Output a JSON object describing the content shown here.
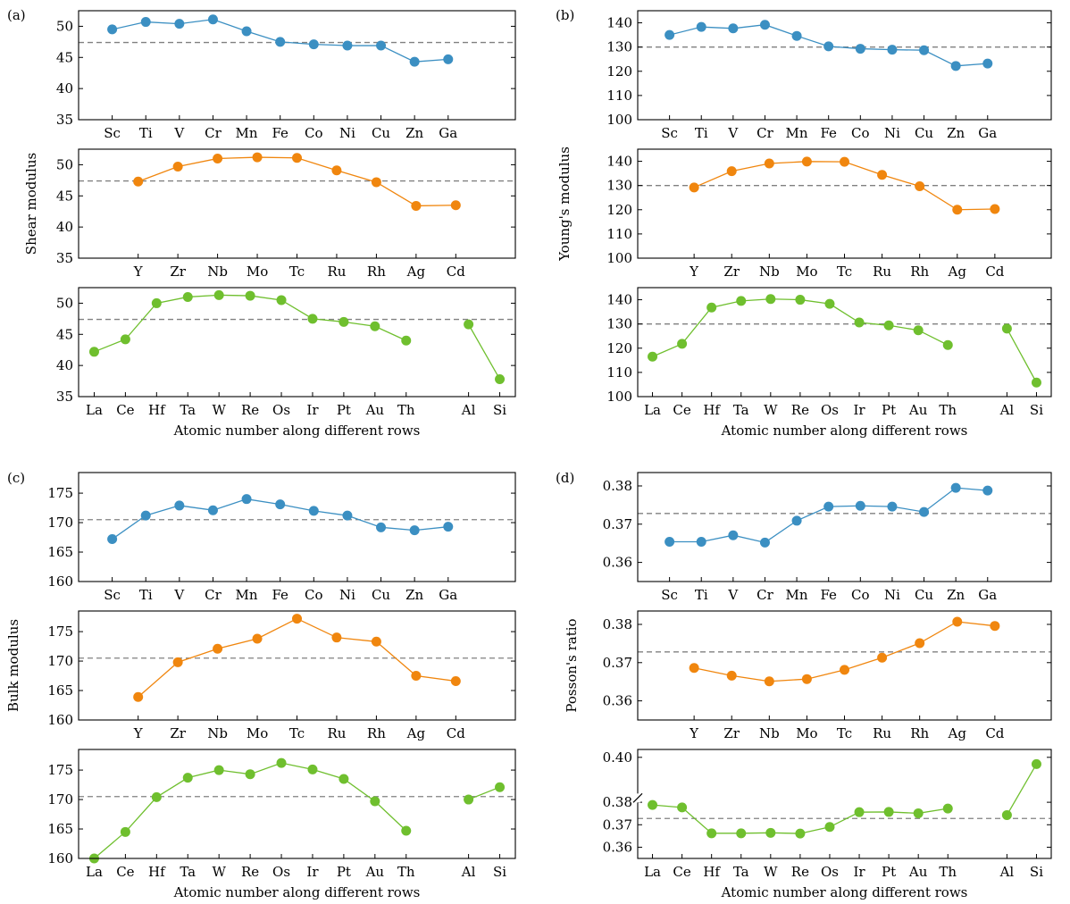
{
  "chart_data": [
    {
      "panel": "(a)",
      "type": "line",
      "ylabel": "Shear modulus",
      "xlabel": "Atomic number along different rows",
      "ylim": [
        35,
        52.5
      ],
      "yticks": [
        35,
        40,
        45,
        50
      ],
      "yticklabels": [
        "35",
        "40",
        "45",
        "50"
      ],
      "reference_line": 47.4,
      "rows": [
        {
          "color": "#3b8fc2",
          "categories": [
            "Sc",
            "Ti",
            "V",
            "Cr",
            "Mn",
            "Fe",
            "Co",
            "Ni",
            "Cu",
            "Zn",
            "Ga"
          ],
          "values": [
            49.5,
            50.7,
            50.4,
            51.1,
            49.2,
            47.5,
            47.1,
            46.9,
            46.9,
            44.3,
            44.7
          ]
        },
        {
          "color": "#f0860e",
          "categories": [
            "Y",
            "Zr",
            "Nb",
            "Mo",
            "Tc",
            "Ru",
            "Rh",
            "Ag",
            "Cd"
          ],
          "values": [
            47.3,
            49.7,
            51.0,
            51.2,
            51.1,
            49.1,
            47.2,
            43.4,
            43.5
          ]
        },
        {
          "color": "#6fbf2e",
          "categories": [
            "La",
            "Ce",
            "Hf",
            "Ta",
            "W",
            "Re",
            "Os",
            "Ir",
            "Pt",
            "Au",
            "Th",
            "",
            "Al",
            "Si"
          ],
          "values": [
            42.2,
            44.2,
            50.0,
            51.0,
            51.3,
            51.2,
            50.5,
            47.5,
            47.0,
            46.3,
            44.0,
            null,
            46.6,
            37.8
          ]
        }
      ]
    },
    {
      "panel": "(b)",
      "type": "line",
      "ylabel": "Young's modulus",
      "xlabel": "Atomic number along different rows",
      "ylim": [
        100,
        145
      ],
      "yticks": [
        100,
        110,
        120,
        130,
        140
      ],
      "yticklabels": [
        "100",
        "110",
        "120",
        "130",
        "140"
      ],
      "reference_line": 130,
      "rows": [
        {
          "color": "#3b8fc2",
          "categories": [
            "Sc",
            "Ti",
            "V",
            "Cr",
            "Mn",
            "Fe",
            "Co",
            "Ni",
            "Cu",
            "Zn",
            "Ga"
          ],
          "values": [
            135.0,
            138.3,
            137.7,
            139.2,
            134.6,
            130.3,
            129.3,
            128.9,
            128.7,
            122.2,
            123.2
          ]
        },
        {
          "color": "#f0860e",
          "categories": [
            "Y",
            "Zr",
            "Nb",
            "Mo",
            "Tc",
            "Ru",
            "Rh",
            "Ag",
            "Cd"
          ],
          "values": [
            129.2,
            135.9,
            139.1,
            139.9,
            139.8,
            134.4,
            129.7,
            120.0,
            120.3
          ]
        },
        {
          "color": "#6fbf2e",
          "categories": [
            "La",
            "Ce",
            "Hf",
            "Ta",
            "W",
            "Re",
            "Os",
            "Ir",
            "Pt",
            "Au",
            "Th",
            "",
            "Al",
            "Si"
          ],
          "values": [
            116.5,
            121.8,
            136.8,
            139.5,
            140.3,
            140.0,
            138.3,
            130.6,
            129.4,
            127.4,
            121.3,
            null,
            128.1,
            105.8
          ]
        }
      ]
    },
    {
      "panel": "(c)",
      "type": "line",
      "ylabel": "Bulk modulus",
      "xlabel": "Atomic number along different rows",
      "ylim": [
        160,
        178.5
      ],
      "yticks": [
        160,
        165,
        170,
        175
      ],
      "yticklabels": [
        "160",
        "165",
        "170",
        "175"
      ],
      "reference_line": 170.5,
      "rows": [
        {
          "color": "#3b8fc2",
          "categories": [
            "Sc",
            "Ti",
            "V",
            "Cr",
            "Mn",
            "Fe",
            "Co",
            "Ni",
            "Cu",
            "Zn",
            "Ga"
          ],
          "values": [
            167.2,
            171.2,
            172.9,
            172.1,
            174.0,
            173.1,
            172.0,
            171.2,
            169.2,
            168.7,
            169.3
          ]
        },
        {
          "color": "#f0860e",
          "categories": [
            "Y",
            "Zr",
            "Nb",
            "Mo",
            "Tc",
            "Ru",
            "Rh",
            "Ag",
            "Cd"
          ],
          "values": [
            163.9,
            169.8,
            172.1,
            173.8,
            177.2,
            174.0,
            173.3,
            167.5,
            166.6
          ]
        },
        {
          "color": "#6fbf2e",
          "categories": [
            "La",
            "Ce",
            "Hf",
            "Ta",
            "W",
            "Re",
            "Os",
            "Ir",
            "Pt",
            "Au",
            "Th",
            "",
            "Al",
            "Si"
          ],
          "values": [
            160.0,
            164.5,
            170.4,
            173.7,
            175.0,
            174.3,
            176.2,
            175.1,
            173.5,
            169.7,
            164.7,
            null,
            170.0,
            172.1
          ]
        }
      ]
    },
    {
      "panel": "(d)",
      "type": "line",
      "ylabel": "Posson's ratio",
      "xlabel": "Atomic number along different rows",
      "ylim": [
        0.355,
        0.3835
      ],
      "yticks": [
        0.36,
        0.37,
        0.38
      ],
      "yticklabels": [
        "0.36",
        "0.37",
        "0.38"
      ],
      "reference_line": 0.3728,
      "rows": [
        {
          "color": "#3b8fc2",
          "categories": [
            "Sc",
            "Ti",
            "V",
            "Cr",
            "Mn",
            "Fe",
            "Co",
            "Ni",
            "Cu",
            "Zn",
            "Ga"
          ],
          "values": [
            0.3654,
            0.3654,
            0.3671,
            0.3652,
            0.3709,
            0.3746,
            0.3748,
            0.3746,
            0.3732,
            0.3795,
            0.3788
          ]
        },
        {
          "color": "#f0860e",
          "categories": [
            "Y",
            "Zr",
            "Nb",
            "Mo",
            "Tc",
            "Ru",
            "Rh",
            "Ag",
            "Cd"
          ],
          "values": [
            0.3686,
            0.3666,
            0.3651,
            0.3657,
            0.3681,
            0.3713,
            0.3751,
            0.3807,
            0.3796
          ]
        },
        {
          "color": "#6fbf2e",
          "categories": [
            "La",
            "Ce",
            "Hf",
            "Ta",
            "W",
            "Re",
            "Os",
            "Ir",
            "Pt",
            "Au",
            "Th",
            "",
            "Al",
            "Si"
          ],
          "values": [
            0.3788,
            0.3777,
            0.3662,
            0.3662,
            0.3664,
            0.3661,
            0.369,
            0.3756,
            0.3757,
            0.3751,
            0.3772,
            null,
            0.3743,
            0.397
          ]
        }
      ],
      "bottom_axis": {
        "ylim": [
          0.355,
          0.4035
        ],
        "yticks": [
          0.36,
          0.37,
          0.38,
          0.4
        ],
        "yticklabels": [
          "0.36",
          "0.37",
          "0.38",
          "0.40"
        ],
        "axis_break": true
      }
    }
  ]
}
